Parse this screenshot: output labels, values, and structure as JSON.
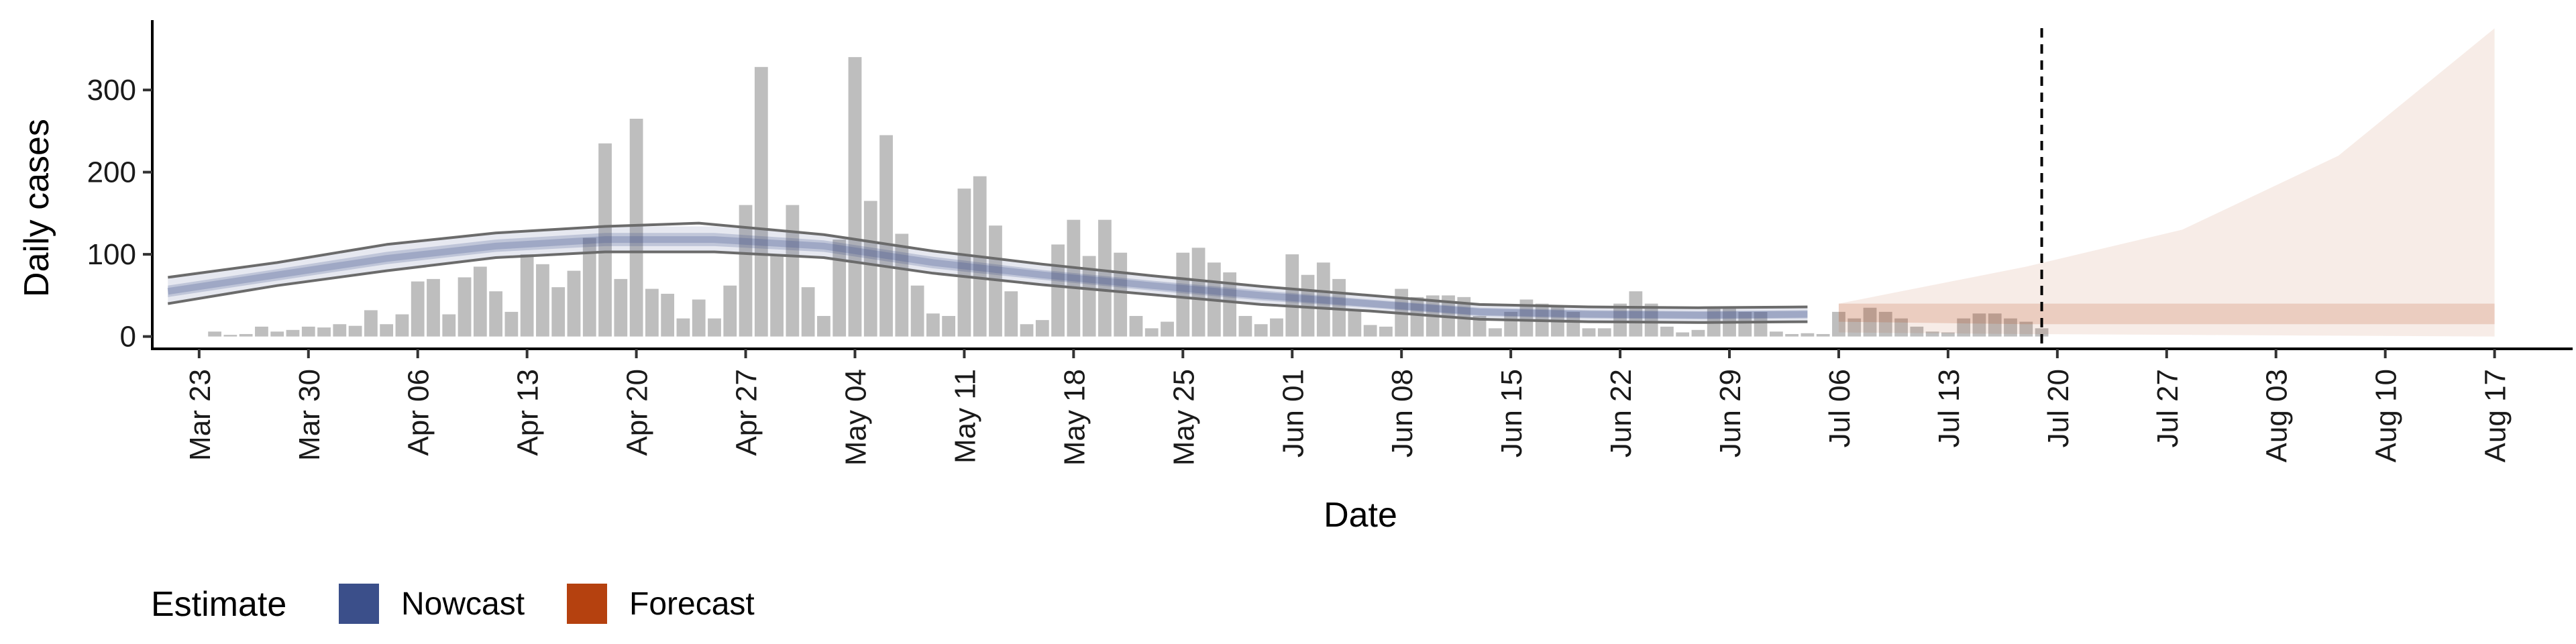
{
  "chart_data": {
    "type": "bar",
    "title": "",
    "xlabel": "Date",
    "ylabel": "Daily cases",
    "ylim": [
      -15,
      385
    ],
    "y_ticks": [
      0,
      100,
      200,
      300
    ],
    "x_start": "2020-03-20",
    "x_end": "2020-08-22",
    "x_ticks": [
      "2020-03-23",
      "2020-03-30",
      "2020-04-06",
      "2020-04-13",
      "2020-04-20",
      "2020-04-27",
      "2020-05-04",
      "2020-05-11",
      "2020-05-18",
      "2020-05-25",
      "2020-06-01",
      "2020-06-08",
      "2020-06-15",
      "2020-06-22",
      "2020-06-29",
      "2020-07-06",
      "2020-07-13",
      "2020-07-20",
      "2020-07-27",
      "2020-08-03",
      "2020-08-10",
      "2020-08-17"
    ],
    "x_tick_labels": [
      "Mar 23",
      "Mar 30",
      "Apr 06",
      "Apr 13",
      "Apr 20",
      "Apr 27",
      "May 04",
      "May 11",
      "May 18",
      "May 25",
      "Jun 01",
      "Jun 08",
      "Jun 15",
      "Jun 22",
      "Jun 29",
      "Jul 06",
      "Jul 13",
      "Jul 20",
      "Jul 27",
      "Aug 03",
      "Aug 10",
      "Aug 17"
    ],
    "grid": false,
    "legend_position": "bottom-left",
    "forecast_start": "2020-07-19",
    "colors": {
      "bars": "#bebebe",
      "nowcast": "#3b4f8a",
      "forecast": "#b5410f",
      "reported_lines": "#6b6b6b",
      "forecast_marker": "#000000"
    },
    "daily_cases": {
      "start": "2020-03-24",
      "values": [
        6,
        2,
        3,
        12,
        6,
        8,
        12,
        11,
        15,
        13,
        32,
        15,
        27,
        67,
        70,
        27,
        72,
        85,
        55,
        30,
        100,
        88,
        60,
        80,
        120,
        235,
        70,
        265,
        58,
        52,
        22,
        45,
        22,
        62,
        160,
        328,
        100,
        160,
        60,
        25,
        118,
        340,
        165,
        245,
        125,
        62,
        28,
        25,
        180,
        195,
        135,
        55,
        15,
        20,
        112,
        142,
        98,
        142,
        102,
        25,
        10,
        18,
        102,
        108,
        90,
        78,
        25,
        15,
        22,
        100,
        75,
        90,
        70,
        32,
        14,
        12,
        58,
        48,
        50,
        50,
        48,
        25,
        10,
        30,
        45,
        40,
        38,
        30,
        10,
        10,
        40,
        55,
        40,
        12,
        5,
        8,
        35,
        35,
        30,
        30,
        6,
        3,
        4,
        3,
        30,
        22,
        35,
        30,
        22,
        12,
        6,
        5,
        22,
        28,
        28,
        22,
        18,
        10
      ]
    },
    "nowcast": {
      "start": "2020-03-24",
      "end": "2020-07-04",
      "median": [
        [
          -3,
          55
        ],
        [
          4,
          75
        ],
        [
          11,
          95
        ],
        [
          18,
          110
        ],
        [
          25,
          118
        ],
        [
          32,
          118
        ],
        [
          39,
          110
        ],
        [
          46,
          90
        ],
        [
          53,
          75
        ],
        [
          60,
          62
        ],
        [
          67,
          50
        ],
        [
          74,
          40
        ],
        [
          81,
          30
        ],
        [
          88,
          27
        ],
        [
          95,
          26
        ],
        [
          102,
          27
        ]
      ],
      "inner": [
        [
          -3,
          48,
          62
        ],
        [
          4,
          68,
          82
        ],
        [
          11,
          88,
          103
        ],
        [
          18,
          103,
          118
        ],
        [
          25,
          110,
          126
        ],
        [
          32,
          110,
          126
        ],
        [
          39,
          103,
          117
        ],
        [
          46,
          83,
          97
        ],
        [
          53,
          69,
          81
        ],
        [
          60,
          56,
          68
        ],
        [
          67,
          44,
          56
        ],
        [
          74,
          35,
          45
        ],
        [
          81,
          25,
          35
        ],
        [
          88,
          22,
          32
        ],
        [
          95,
          21,
          31
        ],
        [
          102,
          22,
          32
        ]
      ],
      "outer": [
        [
          -3,
          40,
          72
        ],
        [
          4,
          62,
          90
        ],
        [
          11,
          80,
          112
        ],
        [
          18,
          96,
          126
        ],
        [
          25,
          103,
          134
        ],
        [
          32,
          103,
          134
        ],
        [
          39,
          96,
          124
        ],
        [
          46,
          77,
          104
        ],
        [
          53,
          63,
          88
        ],
        [
          60,
          51,
          74
        ],
        [
          67,
          39,
          61
        ],
        [
          74,
          31,
          50
        ],
        [
          81,
          21,
          39
        ],
        [
          88,
          18,
          36
        ],
        [
          95,
          17,
          35
        ],
        [
          102,
          18,
          36
        ]
      ],
      "reported_upper": [
        [
          -3,
          72
        ],
        [
          4,
          90
        ],
        [
          11,
          112
        ],
        [
          18,
          126
        ],
        [
          25,
          134
        ],
        [
          31,
          138
        ],
        [
          39,
          124
        ],
        [
          46,
          104
        ],
        [
          53,
          88
        ],
        [
          60,
          74
        ],
        [
          67,
          61
        ],
        [
          74,
          50
        ],
        [
          81,
          39
        ],
        [
          88,
          36
        ],
        [
          95,
          35
        ],
        [
          102,
          36
        ]
      ],
      "reported_lower": [
        [
          -3,
          40
        ],
        [
          4,
          62
        ],
        [
          11,
          80
        ],
        [
          18,
          96
        ],
        [
          25,
          103
        ],
        [
          32,
          103
        ],
        [
          39,
          96
        ],
        [
          46,
          77
        ],
        [
          53,
          63
        ],
        [
          60,
          51
        ],
        [
          67,
          39
        ],
        [
          74,
          31
        ],
        [
          81,
          21
        ],
        [
          88,
          18
        ],
        [
          95,
          17
        ],
        [
          102,
          18
        ]
      ]
    },
    "forecast": {
      "start": "2020-07-05",
      "end": "2020-08-14",
      "inner": [
        [
          104,
          18,
          40
        ],
        [
          116,
          15,
          40
        ],
        [
          126,
          15,
          40
        ],
        [
          136,
          15,
          40
        ],
        [
          146,
          15,
          40
        ]
      ],
      "outer": [
        [
          104,
          5,
          40
        ],
        [
          116,
          3,
          85
        ],
        [
          126,
          2,
          130
        ],
        [
          136,
          1,
          220
        ],
        [
          146,
          0,
          375
        ]
      ]
    },
    "legend": {
      "title": "Estimate",
      "items": [
        {
          "label": "Nowcast",
          "color": "#3b4f8a"
        },
        {
          "label": "Forecast",
          "color": "#b5410f"
        }
      ]
    }
  }
}
